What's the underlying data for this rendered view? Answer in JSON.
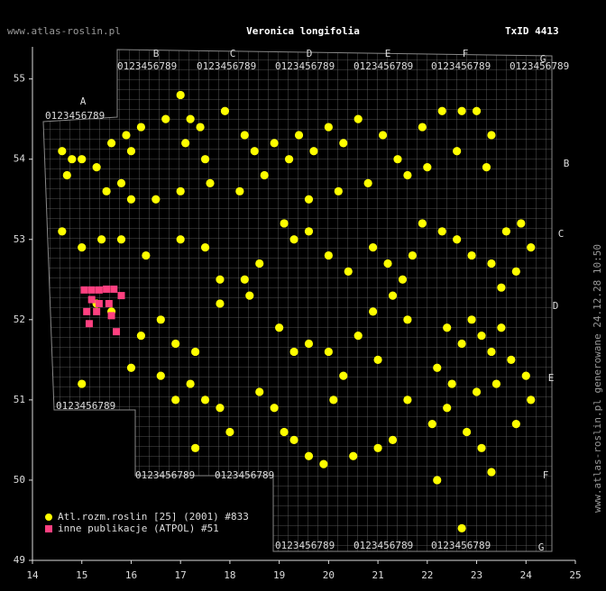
{
  "chart_data": {
    "type": "scatter",
    "title": "Veronica longifolia",
    "site": "www.atlas-roslin.pl",
    "taxon_id": "TxID 4413",
    "side_note": "www.atlas-roslin.pl generowane 24.12.28 10:50",
    "atpol": {
      "letters": [
        "A",
        "B",
        "C",
        "D",
        "E",
        "F",
        "G"
      ],
      "digits": "0123456789"
    },
    "xlim": [
      14,
      25
    ],
    "ylim": [
      49,
      55.4
    ],
    "xticks": [
      14,
      15,
      16,
      17,
      18,
      19,
      20,
      21,
      22,
      23,
      24,
      25
    ],
    "yticks": [
      49,
      50,
      51,
      52,
      53,
      54,
      55
    ],
    "grid": true,
    "legend": "bottom-left",
    "series": [
      {
        "name": "Atl.rozm.roslin [25] (2001) #833",
        "color": "#ffff00",
        "marker": "circle",
        "x": [
          14.6,
          14.8,
          14.7,
          15.0,
          15.3,
          15.6,
          15.9,
          16.0,
          16.2,
          15.5,
          15.8,
          16.7,
          17.0,
          17.2,
          17.4,
          17.1,
          17.5,
          17.9,
          18.3,
          18.5,
          18.9,
          19.2,
          19.4,
          19.7,
          20.0,
          20.3,
          20.6,
          21.1,
          21.4,
          21.9,
          22.3,
          22.7,
          23.0,
          23.3,
          22.6,
          23.2,
          22.0,
          21.6,
          20.8,
          20.2,
          19.6,
          18.7,
          18.2,
          17.6,
          17.0,
          16.5,
          16.0,
          14.6,
          15.0,
          15.4,
          15.8,
          16.3,
          17.0,
          17.5,
          17.8,
          18.3,
          18.6,
          19.1,
          19.3,
          19.6,
          20.0,
          20.4,
          20.9,
          21.2,
          21.5,
          21.7,
          21.9,
          22.3,
          22.6,
          22.9,
          23.3,
          23.6,
          23.9,
          24.1,
          23.8,
          23.5,
          15.3,
          15.6,
          16.2,
          16.6,
          16.9,
          17.3,
          17.8,
          18.4,
          19.0,
          19.3,
          19.6,
          20.0,
          20.6,
          20.9,
          21.3,
          21.6,
          22.4,
          22.7,
          22.9,
          23.1,
          23.3,
          23.5,
          23.7,
          24.0,
          21.0,
          20.3,
          22.2,
          22.5,
          23.0,
          23.4,
          15.0,
          16.0,
          16.6,
          16.9,
          17.2,
          17.5,
          17.8,
          18.0,
          18.6,
          18.9,
          19.1,
          19.3,
          19.6,
          19.9,
          20.5,
          21.0,
          21.3,
          22.1,
          22.4,
          22.8,
          23.1,
          23.3,
          23.8,
          24.1,
          22.2,
          22.7,
          17.3,
          20.1,
          21.6
        ],
        "values": [
          54.1,
          54.0,
          53.8,
          54.0,
          53.9,
          54.2,
          54.3,
          54.1,
          54.4,
          53.6,
          53.7,
          54.5,
          54.8,
          54.5,
          54.4,
          54.2,
          54.0,
          54.6,
          54.3,
          54.1,
          54.2,
          54.0,
          54.3,
          54.1,
          54.4,
          54.2,
          54.5,
          54.3,
          54.0,
          54.4,
          54.6,
          54.6,
          54.6,
          54.3,
          54.1,
          53.9,
          53.9,
          53.8,
          53.7,
          53.6,
          53.5,
          53.8,
          53.6,
          53.7,
          53.6,
          53.5,
          53.5,
          53.1,
          52.9,
          53.0,
          53.0,
          52.8,
          53.0,
          52.9,
          52.5,
          52.5,
          52.7,
          53.2,
          53.0,
          53.1,
          52.8,
          52.6,
          52.9,
          52.7,
          52.5,
          52.8,
          53.2,
          53.1,
          53.0,
          52.8,
          52.7,
          53.1,
          53.2,
          52.9,
          52.6,
          52.4,
          52.2,
          52.1,
          51.8,
          52.0,
          51.7,
          51.6,
          52.2,
          52.3,
          51.9,
          51.6,
          51.7,
          51.6,
          51.8,
          52.1,
          52.3,
          52.0,
          51.9,
          51.7,
          52.0,
          51.8,
          51.6,
          51.9,
          51.5,
          51.3,
          51.5,
          51.3,
          51.4,
          51.2,
          51.1,
          51.2,
          51.2,
          51.4,
          51.3,
          51.0,
          51.2,
          51.0,
          50.9,
          50.6,
          51.1,
          50.9,
          50.6,
          50.5,
          50.3,
          50.2,
          50.3,
          50.4,
          50.5,
          50.7,
          50.9,
          50.6,
          50.4,
          50.1,
          50.7,
          51.0,
          50.0,
          49.4,
          50.4,
          51.0,
          51.0
        ]
      },
      {
        "name": "inne publikacje (ATPOL) #51",
        "color": "#ff4080",
        "marker": "square",
        "x": [
          15.05,
          15.2,
          15.35,
          15.5,
          15.65,
          15.8,
          15.2,
          15.35,
          15.1,
          15.3,
          15.6,
          15.15,
          15.7,
          15.55
        ],
        "values": [
          52.37,
          52.37,
          52.37,
          52.38,
          52.38,
          52.3,
          52.25,
          52.2,
          52.1,
          52.1,
          52.05,
          51.95,
          51.85,
          52.2
        ]
      }
    ]
  }
}
